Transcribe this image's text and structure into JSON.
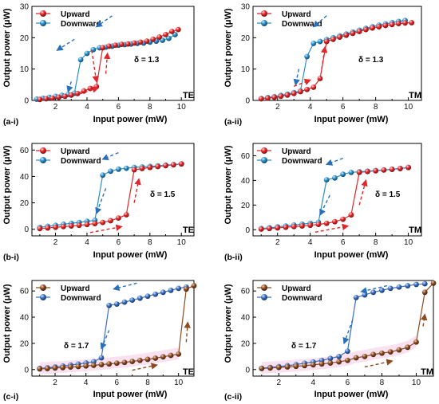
{
  "colors": {
    "upward_red": "#e0262a",
    "downward_blue": "#2a8fc8",
    "upward_brown": "#8b4a22",
    "downward_navy": "#3a6fc0",
    "arrow_red": "#e0262a",
    "arrow_blue": "#2a6fb8",
    "arrow_brown": "#8b4a22",
    "shade_pink": "#f6c9e4"
  },
  "chart_data": [
    {
      "type": "line",
      "panel_label": "(a-i)",
      "mode_label": "TE",
      "delta_label": "δ = 1.3",
      "xlabel": "Input power (mW)",
      "ylabel": "Output power (μW)",
      "xlim": [
        0.5,
        10.8
      ],
      "ylim": [
        0,
        30
      ],
      "xticks": [
        "2",
        "4",
        "6",
        "8",
        "10"
      ],
      "yticks": [
        "0",
        "10",
        "20",
        "30"
      ],
      "legend_position": "top-left",
      "style": "a",
      "series": [
        {
          "name": "Upward",
          "x": [
            1.0,
            1.4,
            1.8,
            2.2,
            2.6,
            3.0,
            3.4,
            3.8,
            4.2,
            4.6,
            5.0,
            5.4,
            5.8,
            6.2,
            6.6,
            7.0,
            7.4,
            7.8,
            8.2,
            8.6,
            9.0,
            9.4,
            9.8
          ],
          "y": [
            0.3,
            0.5,
            0.7,
            1.0,
            1.3,
            1.7,
            2.2,
            3.0,
            3.8,
            4.4,
            16.8,
            17.3,
            17.6,
            17.9,
            18.0,
            18.3,
            18.6,
            18.9,
            19.5,
            20.2,
            21.0,
            22.0,
            22.6
          ]
        },
        {
          "name": "Downward",
          "x": [
            9.6,
            9.2,
            8.8,
            8.4,
            8.0,
            7.6,
            7.2,
            6.8,
            6.4,
            6.0,
            5.6,
            5.2,
            4.8,
            4.4,
            4.0,
            3.6,
            3.2,
            2.8,
            2.4,
            2.0,
            1.6,
            1.2,
            0.8
          ],
          "y": [
            21.0,
            19.8,
            19.2,
            18.9,
            18.6,
            18.3,
            18.2,
            18.0,
            17.8,
            17.6,
            17.3,
            17.0,
            16.8,
            16.2,
            15.0,
            13.0,
            2.3,
            1.9,
            1.6,
            1.3,
            1.0,
            0.7,
            0.4
          ]
        }
      ]
    },
    {
      "type": "line",
      "panel_label": "(a-ii)",
      "mode_label": "TM",
      "delta_label": "δ = 1.3",
      "xlabel": "Input power (mW)",
      "ylabel": "Output power (μW)",
      "xlim": [
        0.5,
        10.8
      ],
      "ylim": [
        0,
        30
      ],
      "xticks": [
        "2",
        "4",
        "6",
        "8",
        "10"
      ],
      "yticks": [
        "0",
        "10",
        "20",
        "30"
      ],
      "legend_position": "top-left",
      "style": "a",
      "series": [
        {
          "name": "Upward",
          "x": [
            1.0,
            1.4,
            1.8,
            2.2,
            2.6,
            3.0,
            3.4,
            3.8,
            4.2,
            4.6,
            5.0,
            5.4,
            5.8,
            6.2,
            6.6,
            7.0,
            7.4,
            7.8,
            8.2,
            8.6,
            9.0,
            9.4,
            9.8,
            10.2
          ],
          "y": [
            0.5,
            0.7,
            1.0,
            1.3,
            1.7,
            2.2,
            2.8,
            3.5,
            4.2,
            7.0,
            18.8,
            19.5,
            20.2,
            20.8,
            21.4,
            22.0,
            22.6,
            23.1,
            23.5,
            23.9,
            24.2,
            24.5,
            24.7,
            24.8
          ]
        },
        {
          "name": "Downward",
          "x": [
            9.8,
            9.4,
            9.0,
            8.6,
            8.2,
            7.8,
            7.4,
            7.0,
            6.6,
            6.2,
            5.8,
            5.4,
            5.0,
            4.6,
            4.2,
            3.8,
            3.4,
            3.0,
            2.6,
            2.2,
            1.8,
            1.4,
            1.0
          ],
          "y": [
            25.5,
            25.2,
            24.8,
            24.4,
            24.0,
            23.5,
            23.0,
            22.4,
            21.8,
            21.2,
            20.6,
            20.0,
            19.4,
            18.8,
            18.2,
            14.0,
            3.0,
            2.5,
            2.0,
            1.6,
            1.2,
            0.9,
            0.6
          ]
        }
      ]
    },
    {
      "type": "line",
      "panel_label": "(b-i)",
      "mode_label": "TE",
      "delta_label": "δ = 1.5",
      "xlabel": "Input power (mW)",
      "ylabel": "Output power (μW)",
      "xlim": [
        0.5,
        10.8
      ],
      "ylim": [
        -5,
        65
      ],
      "xticks": [
        "2",
        "4",
        "6",
        "8",
        "10"
      ],
      "yticks": [
        "0",
        "20",
        "40",
        "60"
      ],
      "legend_position": "top-left",
      "style": "b",
      "series": [
        {
          "name": "Upward",
          "x": [
            1.0,
            1.5,
            2.0,
            2.5,
            3.0,
            3.5,
            4.0,
            4.5,
            5.0,
            5.5,
            6.0,
            6.5,
            7.0,
            7.5,
            8.0,
            8.5,
            9.0,
            9.5,
            10.0
          ],
          "y": [
            0.5,
            1.0,
            1.5,
            2.0,
            2.5,
            3.0,
            3.6,
            4.3,
            5.2,
            6.5,
            8.5,
            11.0,
            45.0,
            46.0,
            46.8,
            47.5,
            48.2,
            48.8,
            49.5
          ]
        },
        {
          "name": "Downward",
          "x": [
            10.0,
            9.5,
            9.0,
            8.5,
            8.0,
            7.5,
            7.0,
            6.5,
            6.0,
            5.5,
            5.0,
            4.5,
            4.0,
            3.5,
            3.0,
            2.5,
            2.0,
            1.5,
            1.0
          ],
          "y": [
            49.5,
            49.0,
            48.6,
            48.0,
            47.6,
            47.2,
            46.8,
            46.2,
            45.5,
            44.0,
            41.0,
            6.8,
            6.0,
            5.2,
            4.5,
            3.8,
            3.0,
            2.2,
            1.5
          ]
        }
      ]
    },
    {
      "type": "line",
      "panel_label": "(b-ii)",
      "mode_label": "TM",
      "delta_label": "δ = 1.5",
      "xlabel": "Input power (mW)",
      "ylabel": "Output power (μW)",
      "xlim": [
        0.5,
        10.8
      ],
      "ylim": [
        -5,
        70
      ],
      "xticks": [
        "2",
        "4",
        "6",
        "8",
        "10"
      ],
      "yticks": [
        "0",
        "20",
        "40",
        "60"
      ],
      "legend_position": "top-left",
      "style": "b",
      "series": [
        {
          "name": "Upward",
          "x": [
            1.0,
            1.5,
            2.0,
            2.5,
            3.0,
            3.5,
            4.0,
            4.5,
            5.0,
            5.5,
            6.0,
            6.5,
            7.0,
            7.5,
            8.0,
            8.5,
            9.0,
            9.5,
            10.0
          ],
          "y": [
            0.5,
            1.0,
            1.5,
            2.0,
            2.5,
            3.0,
            3.6,
            4.3,
            5.2,
            6.5,
            8.5,
            12.0,
            46.5,
            47.2,
            47.8,
            48.4,
            49.0,
            49.6,
            50.5
          ]
        },
        {
          "name": "Downward",
          "x": [
            10.0,
            9.5,
            9.0,
            8.5,
            8.0,
            7.5,
            7.0,
            6.5,
            6.0,
            5.5,
            5.0,
            4.5,
            4.0,
            3.5,
            3.0,
            2.5,
            2.0,
            1.5,
            1.0
          ],
          "y": [
            50.5,
            49.8,
            49.0,
            48.5,
            48.0,
            47.5,
            47.0,
            46.5,
            45.0,
            42.0,
            40.5,
            6.0,
            5.2,
            4.5,
            3.8,
            3.0,
            2.3,
            1.6,
            1.0
          ]
        }
      ]
    },
    {
      "type": "line",
      "panel_label": "(c-i)",
      "mode_label": "TE",
      "delta_label": "δ = 1.7",
      "xlabel": "Input power (mW)",
      "ylabel": "Output power (μW)",
      "xlim": [
        0.5,
        11.0
      ],
      "ylim": [
        -5,
        68
      ],
      "xticks": [
        "2",
        "4",
        "6",
        "8",
        "10"
      ],
      "yticks": [
        "0",
        "20",
        "40",
        "60"
      ],
      "legend_position": "top-left",
      "style": "c",
      "series": [
        {
          "name": "Upward",
          "x": [
            1.0,
            1.5,
            2.0,
            2.5,
            3.0,
            3.5,
            4.0,
            4.5,
            5.0,
            5.5,
            6.0,
            6.5,
            7.0,
            7.5,
            8.0,
            8.5,
            9.0,
            9.5,
            10.0,
            10.5,
            11.0
          ],
          "y": [
            0.5,
            0.8,
            1.2,
            1.5,
            1.9,
            2.3,
            2.8,
            3.2,
            3.8,
            4.3,
            4.9,
            5.5,
            6.2,
            7.0,
            7.8,
            8.7,
            9.7,
            10.8,
            11.8,
            61.5,
            64.0
          ]
        },
        {
          "name": "Downward",
          "x": [
            10.5,
            10.0,
            9.5,
            9.0,
            8.5,
            8.0,
            7.5,
            7.0,
            6.5,
            6.0,
            5.5,
            5.0,
            4.5,
            4.0,
            3.5,
            3.0,
            2.5,
            2.0,
            1.5,
            1.0
          ],
          "y": [
            63.0,
            62.0,
            60.5,
            59.0,
            57.5,
            56.0,
            54.5,
            53.0,
            51.5,
            50.0,
            49.0,
            9.0,
            6.0,
            5.0,
            4.2,
            3.4,
            2.7,
            2.0,
            1.4,
            0.9
          ]
        }
      ]
    },
    {
      "type": "line",
      "panel_label": "(c-ii)",
      "mode_label": "TM",
      "delta_label": "δ = 1.7",
      "xlabel": "Input power (mW)",
      "ylabel": "Output power (μW)",
      "xlim": [
        0.5,
        11.0
      ],
      "ylim": [
        -5,
        68
      ],
      "xticks": [
        "2",
        "4",
        "6",
        "8",
        "10"
      ],
      "yticks": [
        "0",
        "20",
        "40",
        "60"
      ],
      "legend_position": "top-left",
      "style": "c",
      "series": [
        {
          "name": "Upward",
          "x": [
            1.0,
            1.5,
            2.0,
            2.5,
            3.0,
            3.5,
            4.0,
            4.5,
            5.0,
            5.5,
            6.0,
            6.5,
            7.0,
            7.5,
            8.0,
            8.5,
            9.0,
            9.5,
            10.0,
            10.5,
            11.0
          ],
          "y": [
            0.8,
            1.2,
            1.6,
            2.0,
            2.5,
            3.0,
            3.6,
            4.3,
            5.0,
            5.9,
            7.0,
            9.0,
            10.0,
            11.5,
            12.5,
            13.5,
            15.0,
            17.0,
            21.0,
            59.0,
            66.0
          ]
        },
        {
          "name": "Downward",
          "x": [
            10.5,
            10.0,
            9.5,
            9.0,
            8.5,
            8.0,
            7.5,
            7.0,
            6.5,
            6.0,
            5.5,
            5.0,
            4.5,
            4.0,
            3.5,
            3.0,
            2.5,
            2.0,
            1.5,
            1.0
          ],
          "y": [
            65.5,
            65.0,
            64.0,
            63.0,
            62.0,
            60.5,
            59.0,
            57.0,
            55.0,
            14.0,
            10.0,
            8.5,
            7.0,
            5.8,
            4.8,
            3.8,
            3.0,
            2.3,
            1.6,
            1.0
          ]
        }
      ]
    }
  ]
}
